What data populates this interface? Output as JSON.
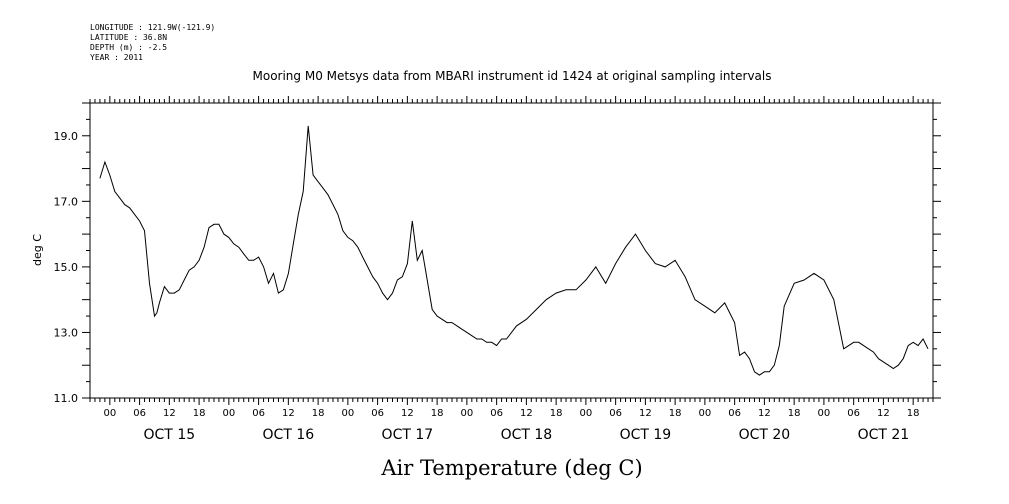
{
  "metadata": {
    "longitude": "LONGITUDE : 121.9W(-121.9)",
    "latitude": "LATITUDE : 36.8N",
    "depth": "DEPTH (m) : -2.5",
    "year": "YEAR : 2011"
  },
  "chart_data": {
    "type": "line",
    "title": "Mooring M0 Metsys data from MBARI instrument id 1424 at original sampling intervals",
    "xlabel": "Air Temperature (deg C)",
    "ylabel": "deg C",
    "ylim": [
      11.0,
      20.0
    ],
    "yticks": [
      11.0,
      13.0,
      15.0,
      17.0,
      19.0
    ],
    "ytick_labels": [
      "11.0",
      "13.0",
      "15.0",
      "17.0",
      "19.0"
    ],
    "xlim_hours": [
      -4,
      166
    ],
    "hour_tick_labels": [
      "00",
      "06",
      "12",
      "18",
      "00",
      "06",
      "12",
      "18",
      "00",
      "06",
      "12",
      "18",
      "00",
      "06",
      "12",
      "18",
      "00",
      "06",
      "12",
      "18",
      "00",
      "06",
      "12",
      "18",
      "00",
      "06",
      "12",
      "18"
    ],
    "day_labels": [
      "OCT 15",
      "OCT 16",
      "OCT 17",
      "OCT 18",
      "OCT 19",
      "OCT 20",
      "OCT 21"
    ],
    "grid": false,
    "series": [
      {
        "x": [
          -2,
          -1,
          0,
          1,
          2,
          3,
          4,
          5,
          6,
          7,
          8,
          9,
          9.5,
          10,
          11,
          12,
          13,
          14,
          15,
          16,
          17,
          18,
          19,
          20,
          21,
          22,
          23,
          24,
          25,
          26,
          27,
          28,
          29,
          30,
          31,
          32,
          33,
          34,
          35,
          36,
          37,
          38,
          39,
          40,
          41,
          42,
          43,
          44,
          45,
          46,
          47,
          48,
          49,
          50,
          51,
          52,
          53,
          54,
          55,
          56,
          57,
          58,
          59,
          60,
          61,
          62,
          63,
          64,
          65,
          66,
          67,
          68,
          69,
          70,
          71,
          72,
          73,
          74,
          75,
          76,
          77,
          78,
          79,
          80,
          81,
          82,
          84,
          86,
          88,
          90,
          92,
          94,
          96,
          98,
          100,
          102,
          104,
          106,
          108,
          110,
          112,
          114,
          116,
          118,
          120,
          122,
          124,
          126,
          127,
          128,
          129,
          130,
          131,
          132,
          133,
          134,
          135,
          136,
          138,
          140,
          142,
          144,
          146,
          148,
          149,
          150,
          151,
          152,
          153,
          154,
          155,
          156,
          157,
          158,
          159,
          160,
          161,
          162,
          163,
          164,
          165
        ],
        "y": [
          17.7,
          18.2,
          17.8,
          17.3,
          17.1,
          16.9,
          16.8,
          16.6,
          16.4,
          16.1,
          14.5,
          13.5,
          13.6,
          13.9,
          14.4,
          14.2,
          14.2,
          14.3,
          14.6,
          14.9,
          15.0,
          15.2,
          15.6,
          16.2,
          16.3,
          16.3,
          16.0,
          15.9,
          15.7,
          15.6,
          15.4,
          15.2,
          15.2,
          15.3,
          15.0,
          14.5,
          14.8,
          14.2,
          14.3,
          14.8,
          15.7,
          16.6,
          17.3,
          19.3,
          17.8,
          17.6,
          17.4,
          17.2,
          16.9,
          16.6,
          16.1,
          15.9,
          15.8,
          15.6,
          15.3,
          15.0,
          14.7,
          14.5,
          14.2,
          14.0,
          14.2,
          14.6,
          14.7,
          15.1,
          16.4,
          15.2,
          15.5,
          14.6,
          13.7,
          13.5,
          13.4,
          13.3,
          13.3,
          13.2,
          13.1,
          13.0,
          12.9,
          12.8,
          12.8,
          12.7,
          12.7,
          12.6,
          12.8,
          12.8,
          13.0,
          13.2,
          13.4,
          13.7,
          14.0,
          14.2,
          14.3,
          14.3,
          14.6,
          15.0,
          14.5,
          15.1,
          15.6,
          16.0,
          15.5,
          15.1,
          15.0,
          15.2,
          14.7,
          14.0,
          13.8,
          13.6,
          13.9,
          13.3,
          12.3,
          12.4,
          12.2,
          11.8,
          11.7,
          11.8,
          11.8,
          12.0,
          12.6,
          13.8,
          14.5,
          14.6,
          14.8,
          14.6,
          14.0,
          12.5,
          12.6,
          12.7,
          12.7,
          12.6,
          12.5,
          12.4,
          12.2,
          12.1,
          12.0,
          11.9,
          12.0,
          12.2,
          12.6,
          12.7,
          12.6,
          12.8,
          12.5
        ]
      }
    ]
  }
}
